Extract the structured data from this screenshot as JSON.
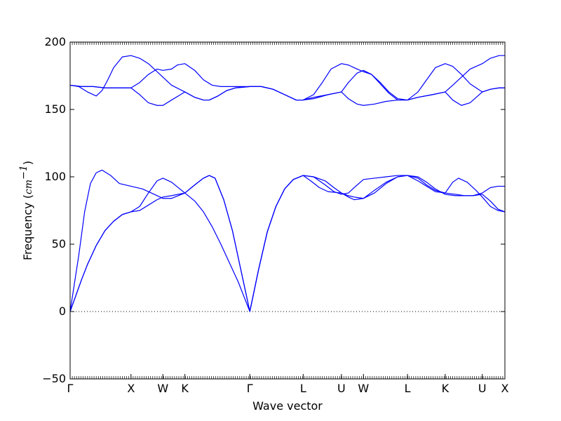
{
  "chart_data": {
    "type": "line",
    "xlabel": "Wave vector",
    "ylabel": {
      "text": "Frequency (",
      "unit_base": "cm",
      "unit_exp": "−1",
      "close": ")"
    },
    "ylim": [
      -50,
      200
    ],
    "yticks": [
      -50,
      0,
      50,
      100,
      150,
      200
    ],
    "ytick_labels": [
      "−50",
      "0",
      "50",
      "100",
      "150",
      "200"
    ],
    "xlim": [
      0,
      0.75
    ],
    "high_symmetry_points": [
      {
        "label": "Γ",
        "x": 0.0
      },
      {
        "label": "X",
        "x": 0.105
      },
      {
        "label": "W",
        "x": 0.16
      },
      {
        "label": "K",
        "x": 0.198
      },
      {
        "label": "Γ",
        "x": 0.31
      },
      {
        "label": "L",
        "x": 0.402
      },
      {
        "label": "U",
        "x": 0.468
      },
      {
        "label": "W",
        "x": 0.506
      },
      {
        "label": "L",
        "x": 0.582
      },
      {
        "label": "K",
        "x": 0.647
      },
      {
        "label": "U",
        "x": 0.711
      },
      {
        "label": "X",
        "x": 0.75
      }
    ],
    "zero_line": {
      "y": 0,
      "style": "dotted"
    },
    "line_color": "#0000ff",
    "grid": false,
    "series": [
      {
        "points": [
          [
            0,
            0
          ],
          [
            0.01,
            12
          ],
          [
            0.02,
            24
          ],
          [
            0.03,
            35
          ],
          [
            0.045,
            49
          ],
          [
            0.06,
            60
          ],
          [
            0.075,
            67
          ],
          [
            0.09,
            72
          ],
          [
            0.105,
            74
          ],
          [
            0.12,
            75
          ],
          [
            0.135,
            79
          ],
          [
            0.15,
            83
          ],
          [
            0.16,
            85
          ],
          [
            0.175,
            86
          ],
          [
            0.198,
            88
          ],
          [
            0.215,
            94
          ],
          [
            0.23,
            99
          ],
          [
            0.24,
            101
          ],
          [
            0.25,
            99
          ],
          [
            0.265,
            83
          ],
          [
            0.28,
            60
          ],
          [
            0.295,
            30
          ],
          [
            0.31,
            0
          ],
          [
            0.325,
            31
          ],
          [
            0.34,
            59
          ],
          [
            0.355,
            78
          ],
          [
            0.37,
            91
          ],
          [
            0.385,
            98
          ],
          [
            0.402,
            101
          ],
          [
            0.42,
            100
          ],
          [
            0.44,
            97
          ],
          [
            0.455,
            92
          ],
          [
            0.468,
            88
          ],
          [
            0.48,
            86
          ],
          [
            0.49,
            85
          ],
          [
            0.506,
            84
          ],
          [
            0.525,
            88
          ],
          [
            0.545,
            95
          ],
          [
            0.565,
            100
          ],
          [
            0.582,
            101
          ],
          [
            0.6,
            100
          ],
          [
            0.615,
            96
          ],
          [
            0.63,
            91
          ],
          [
            0.647,
            87
          ],
          [
            0.665,
            86
          ],
          [
            0.68,
            86
          ],
          [
            0.695,
            86
          ],
          [
            0.711,
            88
          ],
          [
            0.725,
            92
          ],
          [
            0.738,
            93
          ],
          [
            0.75,
            93
          ]
        ]
      },
      {
        "points": [
          [
            0,
            0
          ],
          [
            0.01,
            12
          ],
          [
            0.02,
            24
          ],
          [
            0.03,
            35
          ],
          [
            0.045,
            49
          ],
          [
            0.06,
            60
          ],
          [
            0.075,
            67
          ],
          [
            0.09,
            72
          ],
          [
            0.105,
            74
          ],
          [
            0.12,
            78
          ],
          [
            0.135,
            88
          ],
          [
            0.15,
            97
          ],
          [
            0.16,
            99
          ],
          [
            0.175,
            96
          ],
          [
            0.198,
            88
          ],
          [
            0.215,
            94
          ],
          [
            0.23,
            99
          ],
          [
            0.24,
            101
          ],
          [
            0.25,
            99
          ],
          [
            0.265,
            83
          ],
          [
            0.28,
            60
          ],
          [
            0.295,
            30
          ],
          [
            0.31,
            0
          ],
          [
            0.325,
            31
          ],
          [
            0.34,
            59
          ],
          [
            0.355,
            78
          ],
          [
            0.37,
            91
          ],
          [
            0.385,
            98
          ],
          [
            0.402,
            101
          ],
          [
            0.42,
            100
          ],
          [
            0.44,
            94
          ],
          [
            0.455,
            89
          ],
          [
            0.468,
            87
          ],
          [
            0.48,
            88
          ],
          [
            0.49,
            92
          ],
          [
            0.506,
            98
          ],
          [
            0.525,
            99
          ],
          [
            0.545,
            100
          ],
          [
            0.565,
            101
          ],
          [
            0.582,
            101
          ],
          [
            0.6,
            99
          ],
          [
            0.615,
            94
          ],
          [
            0.63,
            90
          ],
          [
            0.647,
            88
          ],
          [
            0.66,
            96
          ],
          [
            0.67,
            99
          ],
          [
            0.685,
            96
          ],
          [
            0.7,
            90
          ],
          [
            0.711,
            85
          ],
          [
            0.725,
            78
          ],
          [
            0.738,
            75
          ],
          [
            0.75,
            74
          ]
        ]
      },
      {
        "points": [
          [
            0,
            0
          ],
          [
            0.015,
            42
          ],
          [
            0.025,
            74
          ],
          [
            0.035,
            95
          ],
          [
            0.045,
            103
          ],
          [
            0.055,
            105
          ],
          [
            0.07,
            101
          ],
          [
            0.085,
            95
          ],
          [
            0.105,
            93
          ],
          [
            0.125,
            91
          ],
          [
            0.145,
            87
          ],
          [
            0.16,
            84
          ],
          [
            0.175,
            84
          ],
          [
            0.198,
            88
          ],
          [
            0.215,
            82
          ],
          [
            0.23,
            74
          ],
          [
            0.245,
            63
          ],
          [
            0.26,
            50
          ],
          [
            0.275,
            36
          ],
          [
            0.29,
            22
          ],
          [
            0.31,
            0
          ],
          [
            0.325,
            31
          ],
          [
            0.34,
            59
          ],
          [
            0.355,
            78
          ],
          [
            0.37,
            91
          ],
          [
            0.385,
            98
          ],
          [
            0.402,
            101
          ],
          [
            0.415,
            97
          ],
          [
            0.43,
            92
          ],
          [
            0.445,
            89
          ],
          [
            0.468,
            88
          ],
          [
            0.48,
            85
          ],
          [
            0.49,
            83
          ],
          [
            0.506,
            84
          ],
          [
            0.525,
            90
          ],
          [
            0.545,
            96
          ],
          [
            0.565,
            100
          ],
          [
            0.582,
            101
          ],
          [
            0.6,
            97
          ],
          [
            0.615,
            93
          ],
          [
            0.63,
            89
          ],
          [
            0.647,
            88
          ],
          [
            0.665,
            87
          ],
          [
            0.68,
            86
          ],
          [
            0.695,
            86
          ],
          [
            0.711,
            87
          ],
          [
            0.725,
            82
          ],
          [
            0.738,
            76
          ],
          [
            0.75,
            74
          ]
        ]
      },
      {
        "points": [
          [
            0,
            168
          ],
          [
            0.015,
            167
          ],
          [
            0.03,
            163
          ],
          [
            0.045,
            160
          ],
          [
            0.055,
            164
          ],
          [
            0.065,
            172
          ],
          [
            0.075,
            181
          ],
          [
            0.09,
            189
          ],
          [
            0.105,
            190
          ],
          [
            0.12,
            188
          ],
          [
            0.135,
            184
          ],
          [
            0.15,
            178
          ],
          [
            0.16,
            174
          ],
          [
            0.175,
            168
          ],
          [
            0.198,
            163
          ],
          [
            0.215,
            159
          ],
          [
            0.23,
            157
          ],
          [
            0.24,
            157
          ],
          [
            0.255,
            160
          ],
          [
            0.27,
            164
          ],
          [
            0.285,
            166
          ],
          [
            0.31,
            167
          ],
          [
            0.33,
            167
          ],
          [
            0.35,
            165
          ],
          [
            0.37,
            161
          ],
          [
            0.39,
            157
          ],
          [
            0.402,
            157
          ],
          [
            0.42,
            161
          ],
          [
            0.435,
            170
          ],
          [
            0.45,
            180
          ],
          [
            0.468,
            184
          ],
          [
            0.48,
            183
          ],
          [
            0.495,
            180
          ],
          [
            0.506,
            178
          ],
          [
            0.52,
            176
          ],
          [
            0.535,
            169
          ],
          [
            0.55,
            162
          ],
          [
            0.565,
            157
          ],
          [
            0.582,
            157
          ],
          [
            0.6,
            163
          ],
          [
            0.615,
            172
          ],
          [
            0.63,
            181
          ],
          [
            0.647,
            184
          ],
          [
            0.66,
            182
          ],
          [
            0.675,
            176
          ],
          [
            0.69,
            169
          ],
          [
            0.711,
            163
          ],
          [
            0.725,
            165
          ],
          [
            0.74,
            166
          ],
          [
            0.75,
            166
          ]
        ]
      },
      {
        "points": [
          [
            0,
            168
          ],
          [
            0.02,
            167
          ],
          [
            0.04,
            167
          ],
          [
            0.06,
            166
          ],
          [
            0.08,
            166
          ],
          [
            0.105,
            166
          ],
          [
            0.12,
            170
          ],
          [
            0.135,
            176
          ],
          [
            0.15,
            180
          ],
          [
            0.16,
            179
          ],
          [
            0.175,
            180
          ],
          [
            0.185,
            183
          ],
          [
            0.198,
            184
          ],
          [
            0.215,
            179
          ],
          [
            0.23,
            172
          ],
          [
            0.245,
            168
          ],
          [
            0.26,
            167
          ],
          [
            0.285,
            167
          ],
          [
            0.31,
            167
          ],
          [
            0.33,
            167
          ],
          [
            0.35,
            165
          ],
          [
            0.37,
            161
          ],
          [
            0.39,
            157
          ],
          [
            0.402,
            157
          ],
          [
            0.42,
            159
          ],
          [
            0.445,
            161
          ],
          [
            0.468,
            163
          ],
          [
            0.48,
            170
          ],
          [
            0.495,
            177
          ],
          [
            0.506,
            179
          ],
          [
            0.52,
            176
          ],
          [
            0.535,
            170
          ],
          [
            0.55,
            163
          ],
          [
            0.565,
            158
          ],
          [
            0.582,
            157
          ],
          [
            0.6,
            159
          ],
          [
            0.625,
            161
          ],
          [
            0.647,
            163
          ],
          [
            0.66,
            168
          ],
          [
            0.675,
            174
          ],
          [
            0.69,
            180
          ],
          [
            0.711,
            184
          ],
          [
            0.725,
            188
          ],
          [
            0.74,
            190
          ],
          [
            0.75,
            190
          ]
        ]
      },
      {
        "points": [
          [
            0,
            168
          ],
          [
            0.02,
            167
          ],
          [
            0.04,
            167
          ],
          [
            0.06,
            166
          ],
          [
            0.08,
            166
          ],
          [
            0.105,
            166
          ],
          [
            0.12,
            161
          ],
          [
            0.135,
            155
          ],
          [
            0.15,
            153
          ],
          [
            0.16,
            153
          ],
          [
            0.175,
            157
          ],
          [
            0.198,
            163
          ],
          [
            0.215,
            159
          ],
          [
            0.23,
            157
          ],
          [
            0.24,
            157
          ],
          [
            0.255,
            160
          ],
          [
            0.27,
            164
          ],
          [
            0.285,
            166
          ],
          [
            0.31,
            167
          ],
          [
            0.33,
            167
          ],
          [
            0.35,
            165
          ],
          [
            0.37,
            161
          ],
          [
            0.39,
            157
          ],
          [
            0.402,
            157
          ],
          [
            0.42,
            158
          ],
          [
            0.445,
            161
          ],
          [
            0.468,
            163
          ],
          [
            0.48,
            158
          ],
          [
            0.495,
            154
          ],
          [
            0.506,
            153
          ],
          [
            0.525,
            154
          ],
          [
            0.545,
            156
          ],
          [
            0.565,
            157
          ],
          [
            0.582,
            157
          ],
          [
            0.6,
            159
          ],
          [
            0.625,
            161
          ],
          [
            0.647,
            163
          ],
          [
            0.66,
            157
          ],
          [
            0.675,
            153
          ],
          [
            0.69,
            155
          ],
          [
            0.711,
            163
          ],
          [
            0.725,
            165
          ],
          [
            0.74,
            166
          ],
          [
            0.75,
            166
          ]
        ]
      }
    ]
  }
}
